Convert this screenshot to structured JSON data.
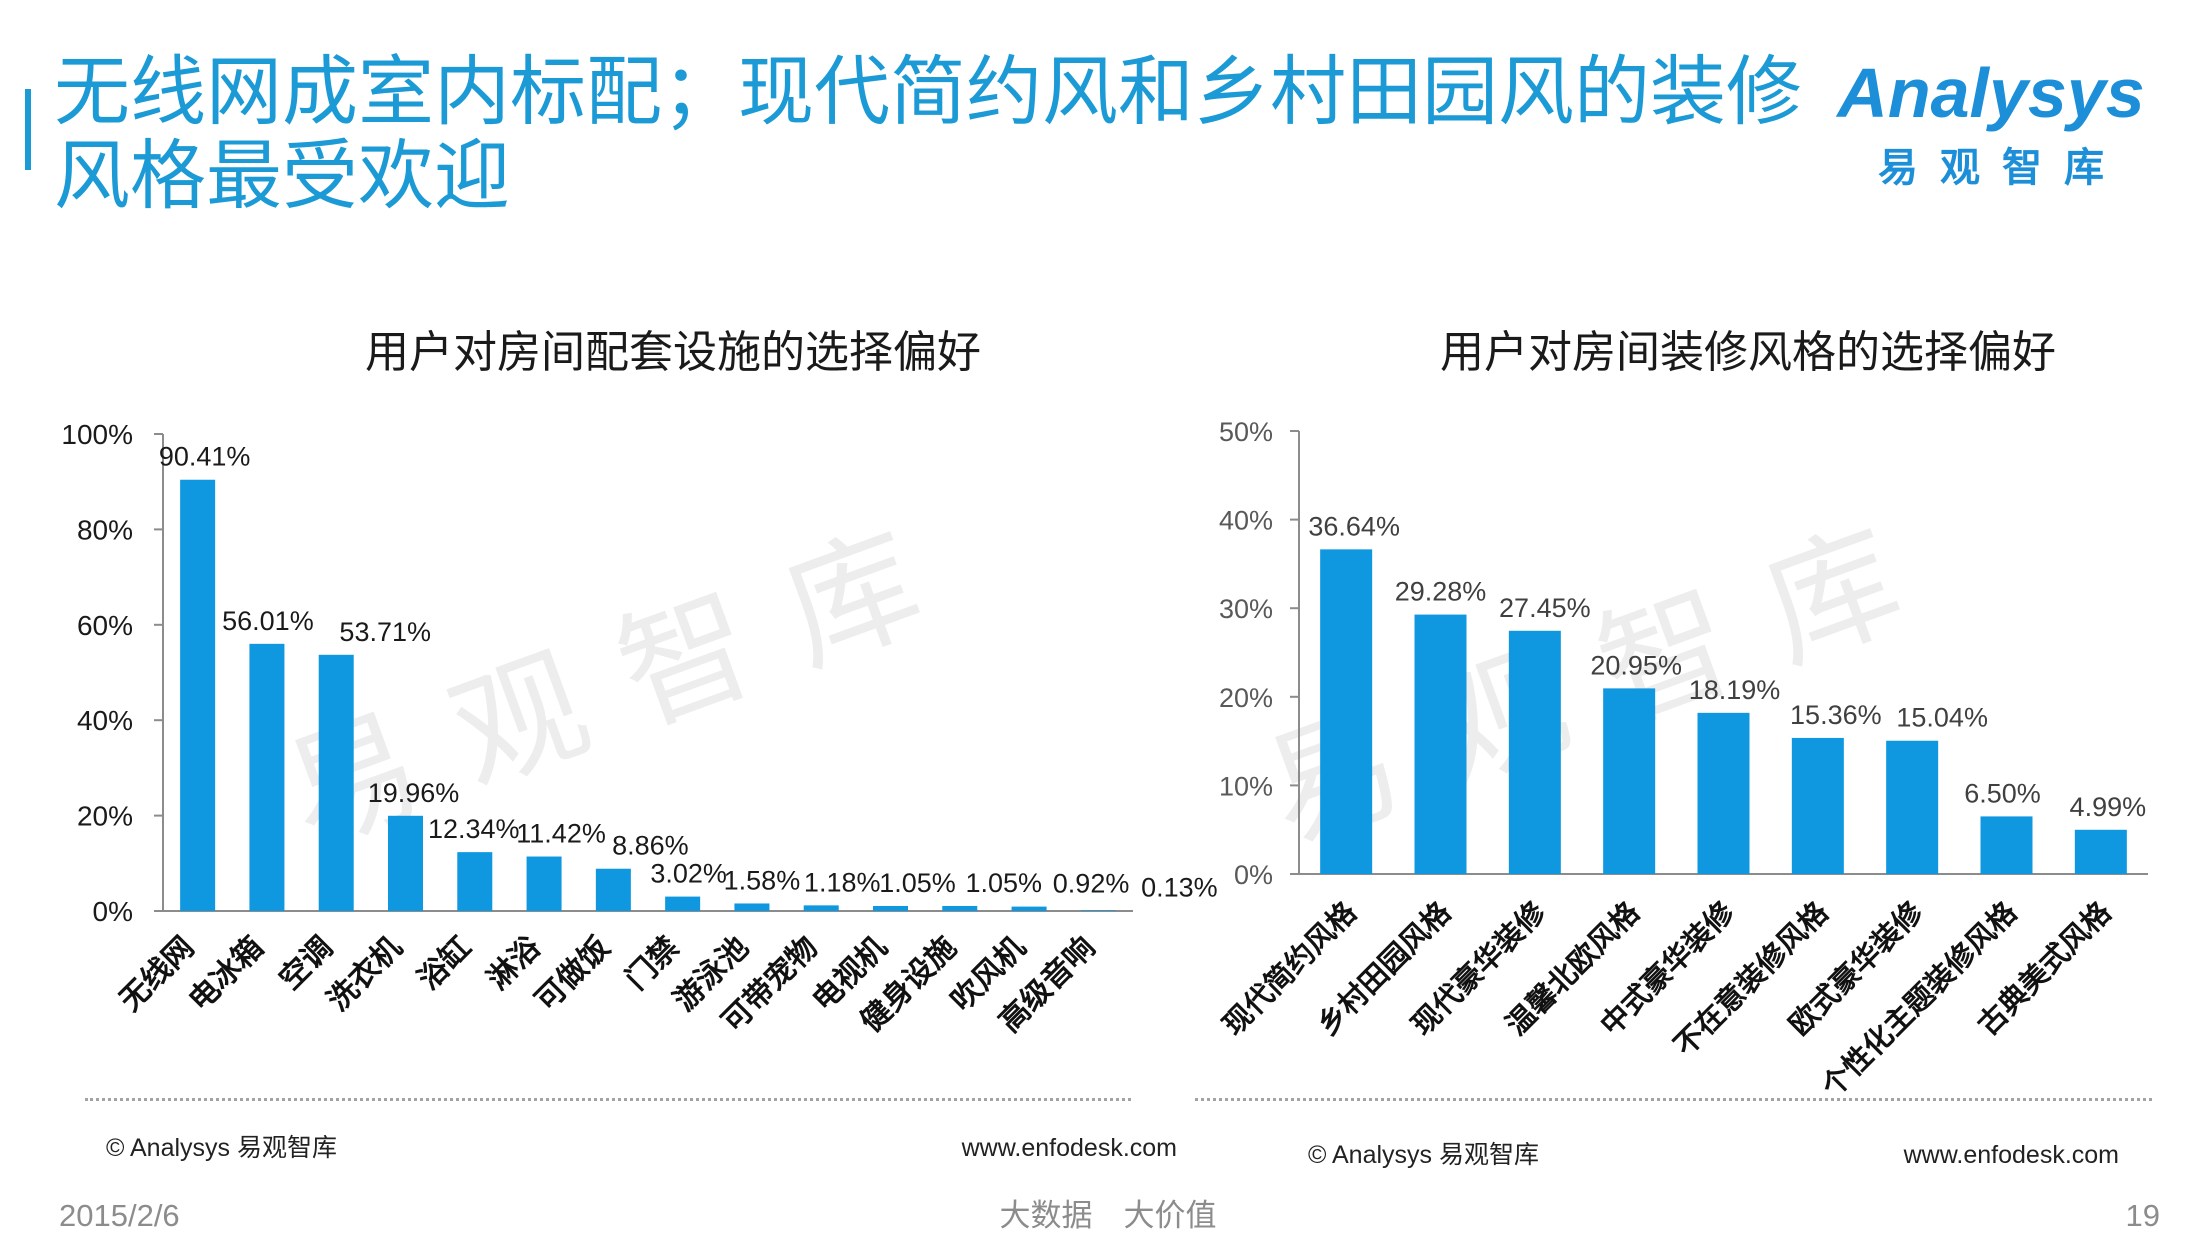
{
  "header": {
    "title_lines": [
      "无线网成室内标配；现代简约风和乡村田园风的装修",
      "风格最受欢迎"
    ],
    "title_color": "#1b9ad6"
  },
  "logo": {
    "wordmark": "Analysys",
    "chinese_name": "易观智库",
    "color": "#1c8fd8"
  },
  "chart_data": [
    {
      "type": "bar",
      "title": "用户对房间配套设施的选择偏好",
      "categories": [
        "无线网",
        "电冰箱",
        "空调",
        "洗衣机",
        "浴缸",
        "淋浴",
        "可做饭",
        "门禁",
        "游泳池",
        "可带宠物",
        "电视机",
        "健身设施",
        "吹风机",
        "高级音响"
      ],
      "values": [
        90.41,
        56.01,
        53.71,
        19.96,
        12.34,
        11.42,
        8.86,
        3.02,
        1.58,
        1.18,
        1.05,
        1.05,
        0.92,
        0.13
      ],
      "data_labels": [
        "90.41%",
        "56.01%",
        "53.71%",
        "19.96%",
        "12.34%",
        "11.42%",
        "8.86%",
        "3.02%",
        "1.58%",
        "1.18%",
        "1.05%",
        "1.05%",
        "0.92%",
        "0.13%"
      ],
      "y_ticks": [
        0,
        20,
        40,
        60,
        80,
        100
      ],
      "y_tick_labels": [
        "0%",
        "20%",
        "40%",
        "60%",
        "80%",
        "100%"
      ],
      "ylim": [
        0,
        100
      ],
      "grid": false,
      "legend": "none",
      "bar_color": "#0f97df",
      "watermark": "易观智库"
    },
    {
      "type": "bar",
      "title": "用户对房间装修风格的选择偏好",
      "categories": [
        "现代简约风格",
        "乡村田园风格",
        "现代豪华装修",
        "温馨北欧风格",
        "中式豪华装修",
        "不在意装修风格",
        "欧式豪华装修",
        "个性化主题装修风格",
        "古典美式风格"
      ],
      "values": [
        36.64,
        29.28,
        27.45,
        20.95,
        18.19,
        15.36,
        15.04,
        6.5,
        4.99
      ],
      "data_labels": [
        "36.64%",
        "29.28%",
        "27.45%",
        "20.95%",
        "18.19%",
        "15.36%",
        "15.04%",
        "6.50%",
        "4.99%"
      ],
      "y_ticks": [
        0,
        10,
        20,
        30,
        40,
        50
      ],
      "y_tick_labels": [
        "0%",
        "10%",
        "20%",
        "30%",
        "40%",
        "50%"
      ],
      "ylim": [
        0,
        50
      ],
      "grid": false,
      "legend": "none",
      "bar_color": "#0f97df",
      "watermark": "易观智库"
    }
  ],
  "sources": [
    {
      "copyright": "© Analysys 易观智库",
      "url": "www.enfodesk.com"
    },
    {
      "copyright": "© Analysys 易观智库",
      "url": "www.enfodesk.com"
    }
  ],
  "footer": {
    "date": "2015/2/6",
    "slogan": "大数据　大价值",
    "page_number": "19"
  }
}
